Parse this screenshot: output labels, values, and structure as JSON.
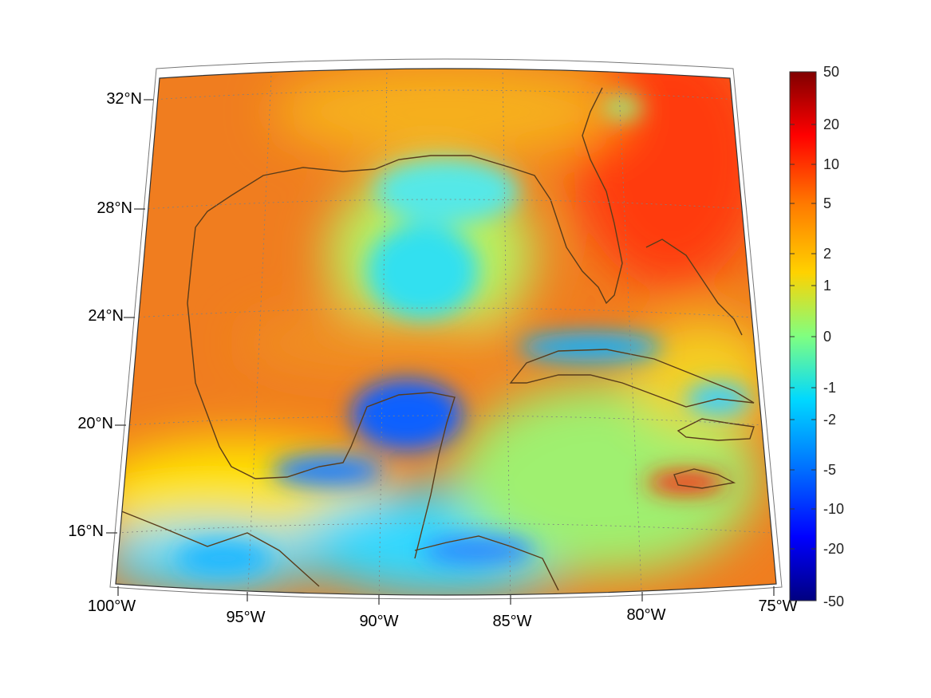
{
  "map": {
    "lat_labels": [
      "32°N",
      "28°N",
      "24°N",
      "20°N",
      "16°N"
    ],
    "lon_labels": [
      "100°W",
      "95°W",
      "90°W",
      "85°W",
      "80°W",
      "75°W"
    ],
    "colors": {
      "land_outline": "#5a3c1a",
      "grid": "#808080",
      "frame": "#333333"
    }
  },
  "colorbar": {
    "labels": [
      "50",
      "20",
      "10",
      "5",
      "2",
      "1",
      "0",
      "-1",
      "-2",
      "-5",
      "-10",
      "-20",
      "-50"
    ],
    "colormap": "jet",
    "scale": "symmetric-log"
  }
}
